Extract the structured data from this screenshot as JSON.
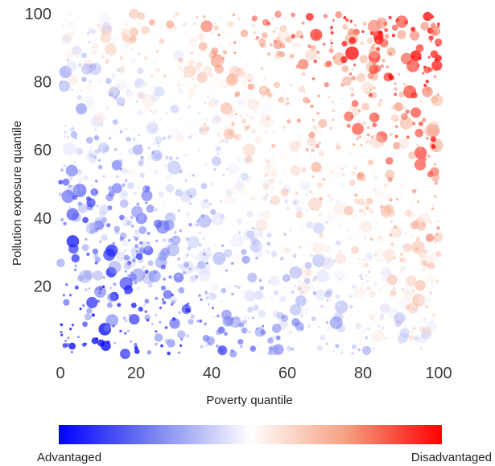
{
  "chart_data": {
    "type": "scatter",
    "title": "",
    "xlabel": "Poverty quantile",
    "ylabel": "Pollution exposure quantile",
    "xlim": [
      0,
      100
    ],
    "ylim": [
      0,
      100
    ],
    "xticks": [
      "0",
      "20",
      "40",
      "60",
      "80",
      "100"
    ],
    "yticks": [
      "20",
      "40",
      "60",
      "80",
      "100"
    ],
    "grid": false,
    "legend": "none",
    "point_count": 1800,
    "color_rule": "color encodes combined disadvantage (poverty + pollution); blue low, red high",
    "colorbar": {
      "orientation": "horizontal",
      "position": "bottom",
      "low_label": "Advantaged",
      "high_label": "Disadvantaged",
      "colors": [
        "#0000ff",
        "#7a84f0",
        "#ffffff",
        "#f5a080",
        "#ff0000"
      ]
    }
  }
}
